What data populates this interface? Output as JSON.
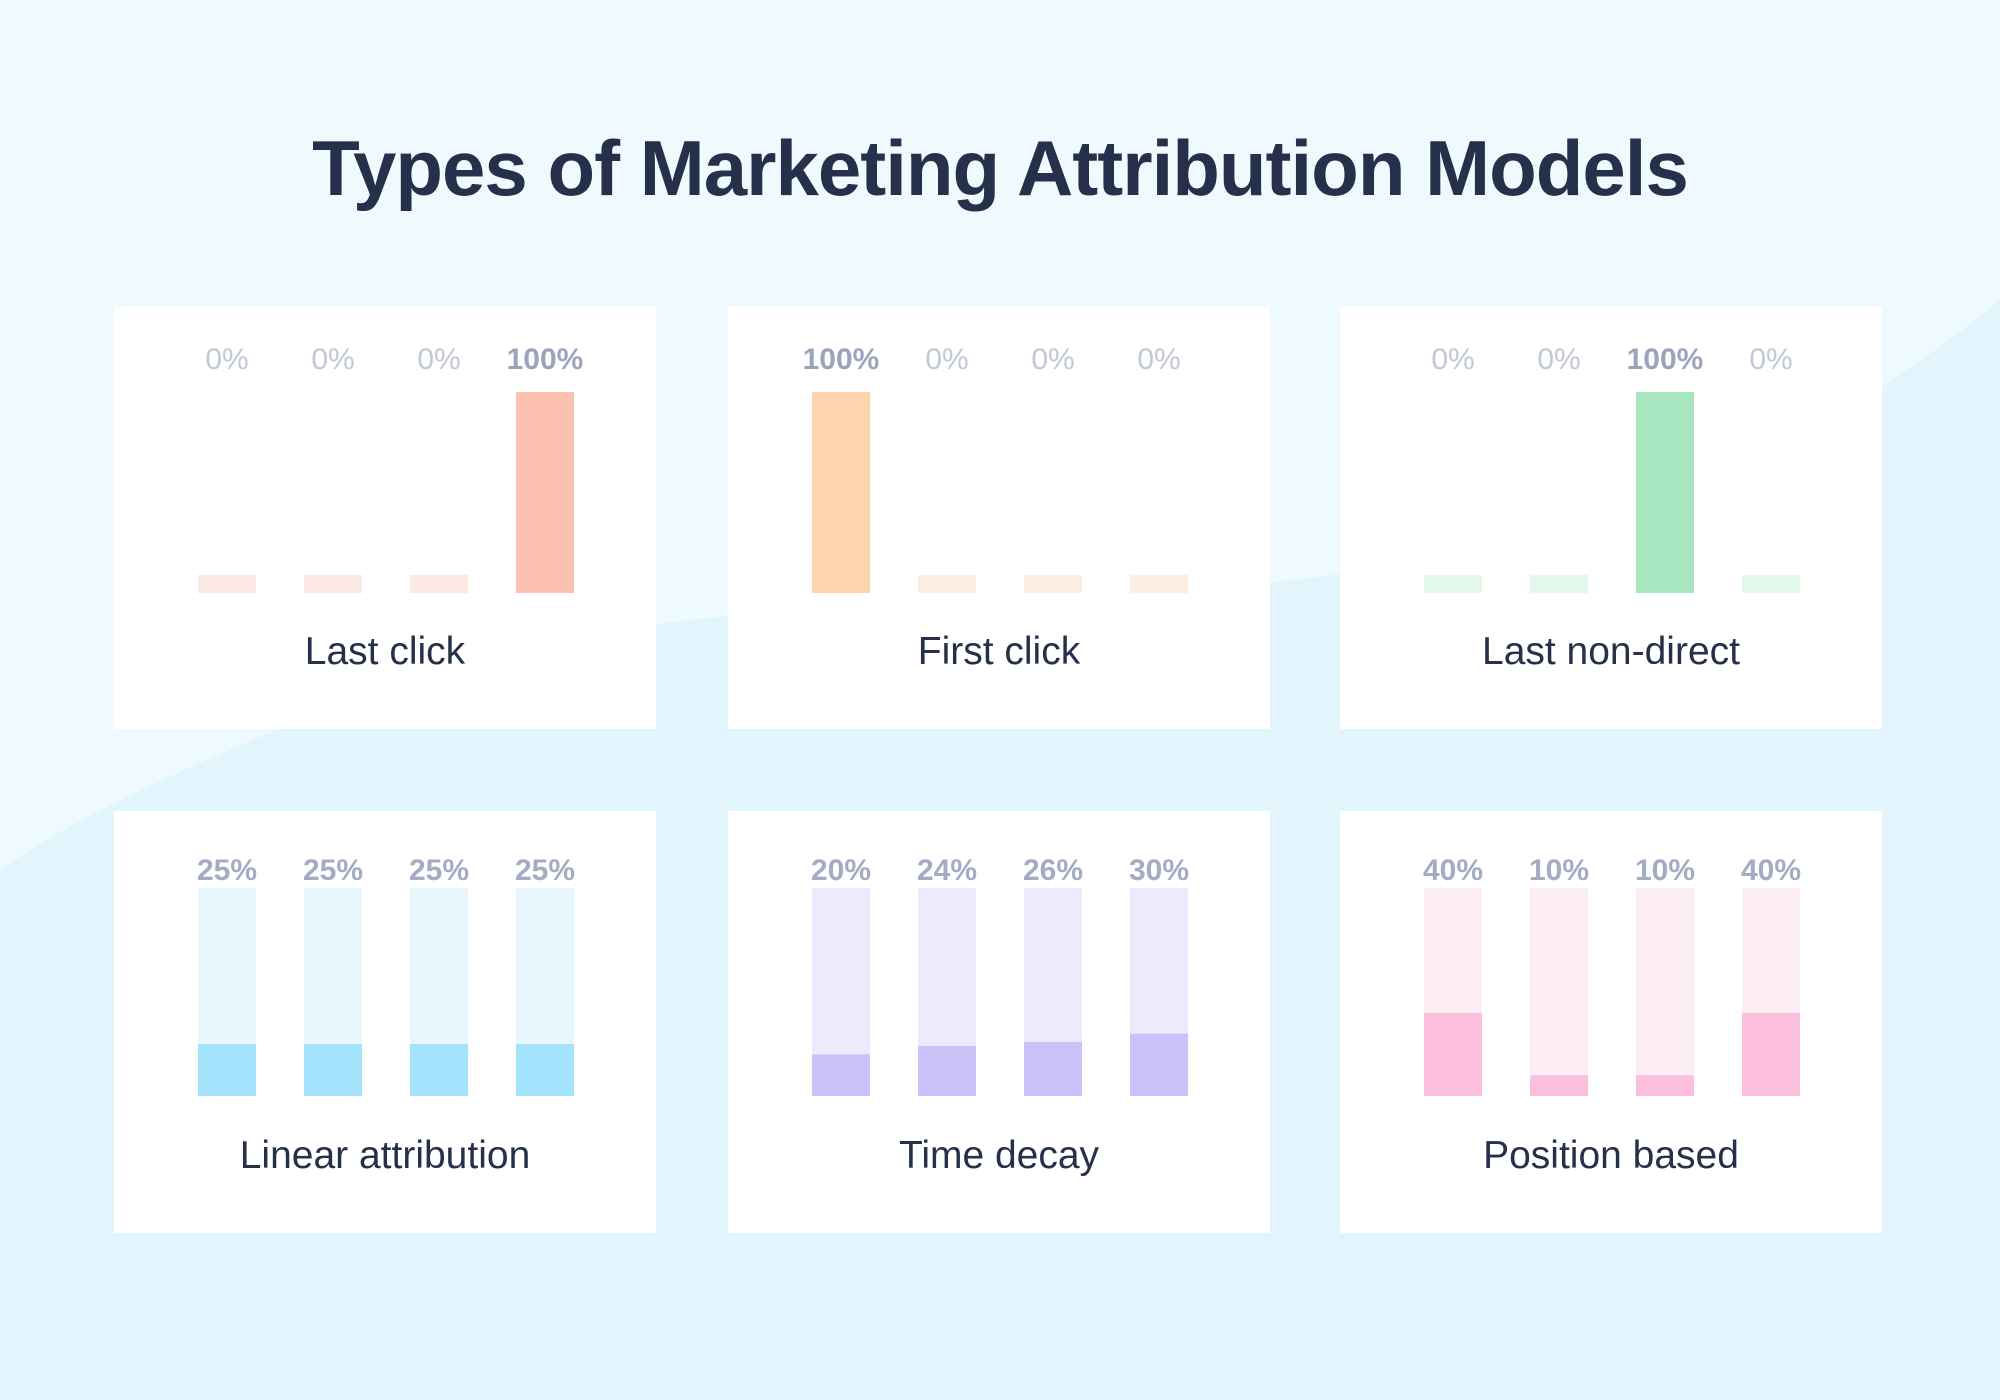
{
  "title": "Types of Marketing Attribution Models",
  "chart_data": [
    {
      "type": "bar",
      "label": "Last click",
      "categories": [
        "",
        "",
        "",
        ""
      ],
      "values": [
        0,
        0,
        0,
        100
      ],
      "value_labels": [
        "0%",
        "0%",
        "0%",
        "100%"
      ],
      "highlight": 3,
      "style": "placeholder",
      "fill_color": "#fdc1b0",
      "track_color": "#fde9e4",
      "ylim": [
        0,
        100
      ]
    },
    {
      "type": "bar",
      "label": "First click",
      "categories": [
        "",
        "",
        "",
        ""
      ],
      "values": [
        100,
        0,
        0,
        0
      ],
      "value_labels": [
        "100%",
        "0%",
        "0%",
        "0%"
      ],
      "highlight": 0,
      "style": "placeholder",
      "fill_color": "#fed4ae",
      "track_color": "#feeee2",
      "ylim": [
        0,
        100
      ]
    },
    {
      "type": "bar",
      "label": "Last non-direct",
      "categories": [
        "",
        "",
        "",
        ""
      ],
      "values": [
        0,
        0,
        100,
        0
      ],
      "value_labels": [
        "0%",
        "0%",
        "100%",
        "0%"
      ],
      "highlight": 2,
      "style": "placeholder",
      "fill_color": "#a7e6bf",
      "track_color": "#e2f8ea",
      "ylim": [
        0,
        100
      ]
    },
    {
      "type": "bar",
      "label": "Linear attribution",
      "categories": [
        "",
        "",
        "",
        ""
      ],
      "values": [
        25,
        25,
        25,
        25
      ],
      "value_labels": [
        "25%",
        "25%",
        "25%",
        "25%"
      ],
      "highlight": -1,
      "style": "track",
      "fill_color": "#a4e3fc",
      "track_color": "#e8f7fd",
      "ylim": [
        0,
        100
      ]
    },
    {
      "type": "bar",
      "label": "Time decay",
      "categories": [
        "",
        "",
        "",
        ""
      ],
      "values": [
        20,
        24,
        26,
        30
      ],
      "value_labels": [
        "20%",
        "24%",
        "26%",
        "30%"
      ],
      "highlight": -1,
      "style": "track",
      "fill_color": "#cdc1f9",
      "track_color": "#eceafc",
      "ylim": [
        0,
        100
      ]
    },
    {
      "type": "bar",
      "label": "Position based",
      "categories": [
        "",
        "",
        "",
        ""
      ],
      "values": [
        40,
        10,
        10,
        40
      ],
      "value_labels": [
        "40%",
        "10%",
        "10%",
        "40%"
      ],
      "highlight": -1,
      "style": "track",
      "fill_color": "#fcc0de",
      "track_color": "#fdeef5",
      "ylim": [
        0,
        100
      ]
    }
  ]
}
